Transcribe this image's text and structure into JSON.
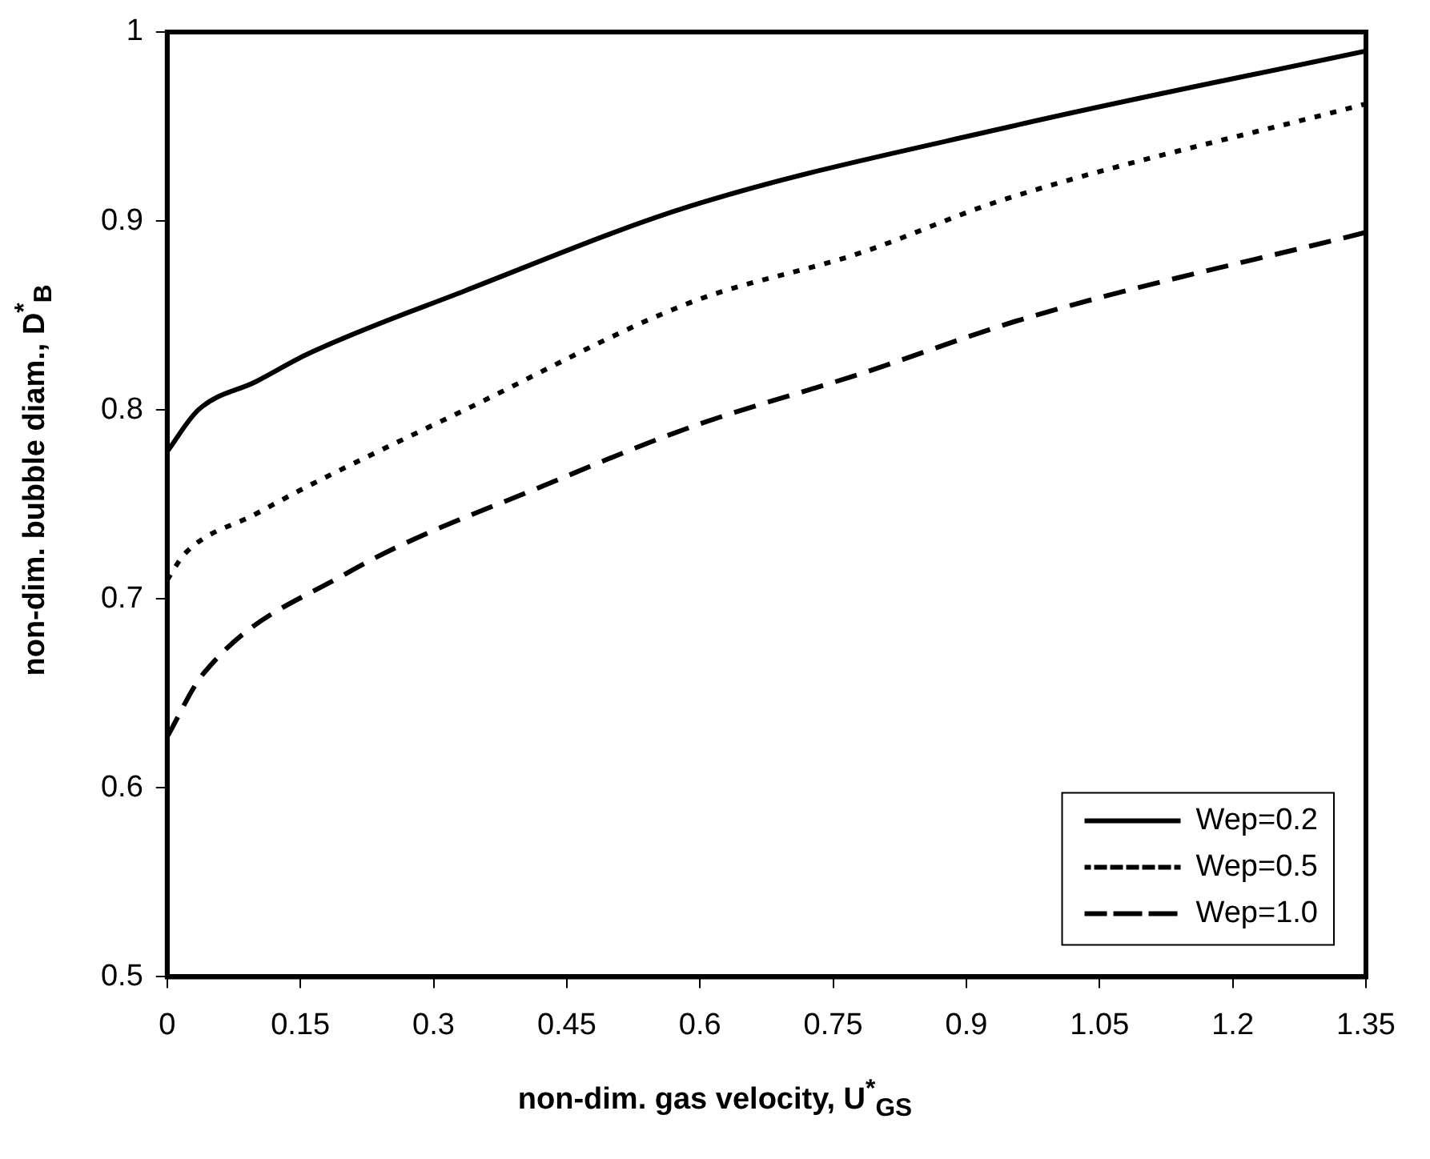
{
  "chart_data": {
    "type": "line",
    "xlabel": "non-dim. gas velocity, U$^{*}$$_{GS}$",
    "ylabel": "non-dim. bubble diam., D$^{*}$$_{B}$",
    "series": [
      {
        "name": "Wep=0.2",
        "color": "#000000",
        "line_style": "solid",
        "x": [
          0,
          0.035,
          0.1,
          0.16,
          0.335,
          0.59,
          0.95,
          1.35
        ],
        "values": [
          0.778,
          0.8,
          0.815,
          0.83,
          0.863,
          0.908,
          0.95,
          0.99
        ]
      },
      {
        "name": "Wep=0.5",
        "color": "#000000",
        "line_style": "dotted",
        "x": [
          0,
          0.02,
          0.1,
          0.16,
          0.335,
          0.59,
          0.78,
          0.94,
          1.35
        ],
        "values": [
          0.71,
          0.724,
          0.745,
          0.76,
          0.8,
          0.857,
          0.883,
          0.911,
          0.962
        ]
      },
      {
        "name": "Wep=1.0",
        "color": "#000000",
        "line_style": "dashed",
        "x": [
          0,
          0.04,
          0.2,
          0.44,
          0.59,
          0.78,
          0.97,
          1.35
        ],
        "values": [
          0.627,
          0.66,
          0.713,
          0.763,
          0.791,
          0.819,
          0.849,
          0.894
        ]
      }
    ],
    "xlim": [
      0,
      1.35
    ],
    "xticks": [
      0,
      0.15,
      0.3,
      0.45,
      0.6,
      0.75,
      0.9,
      1.05,
      1.2,
      1.35
    ],
    "ylim": [
      0.5,
      1
    ],
    "yticks": [
      0.5,
      0.6,
      0.7,
      0.8,
      0.9,
      1
    ],
    "grid": false,
    "marker": "none",
    "legend": "bottom right"
  }
}
